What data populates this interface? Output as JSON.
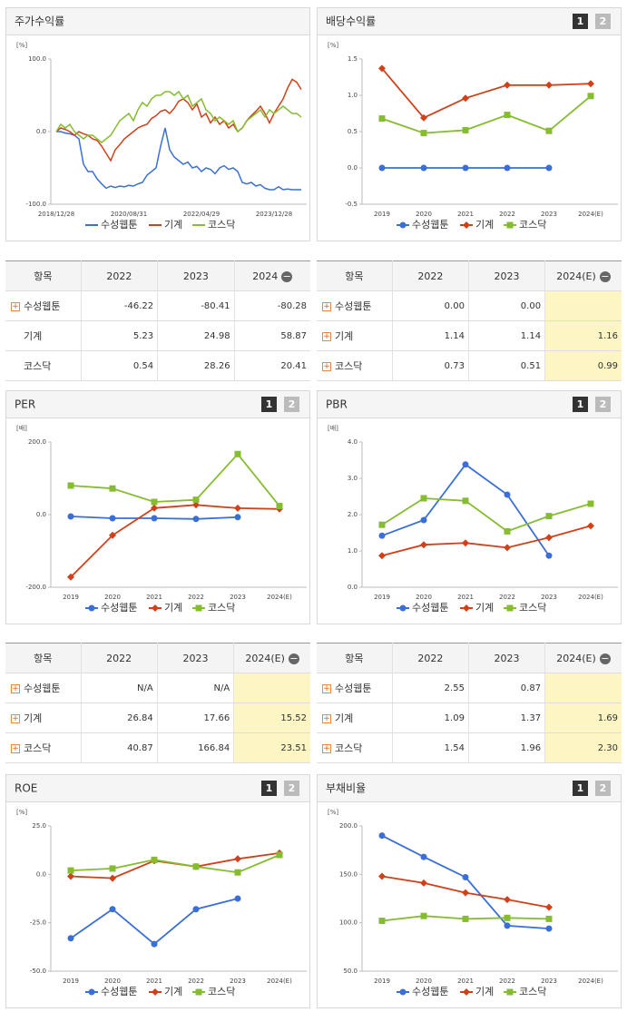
{
  "chart_data": [
    {
      "type": "line",
      "title": "주가수익률",
      "unit": "[%]",
      "markers": false,
      "categories": [
        "2018/12/28",
        null,
        null,
        null,
        null,
        null,
        null,
        null,
        null,
        null,
        null,
        null,
        null,
        null,
        null,
        null,
        "2020/08/31",
        null,
        null,
        null,
        null,
        null,
        null,
        null,
        null,
        null,
        null,
        null,
        null,
        null,
        null,
        null,
        "2022/04/29",
        null,
        null,
        null,
        null,
        null,
        null,
        null,
        null,
        null,
        null,
        null,
        null,
        null,
        null,
        null,
        "2023/12/28",
        null,
        null,
        null,
        null,
        null,
        null
      ],
      "ylim": [
        -100,
        100
      ],
      "yticks": [
        {
          "value": -100,
          "label": "-100.0"
        },
        {
          "value": 0,
          "label": "0.0"
        },
        {
          "value": 100,
          "label": "100.0"
        }
      ],
      "series": [
        {
          "name": "수성웹툰",
          "color": "#3a6fd8",
          "values": [
            0,
            0,
            -2,
            -3,
            -5,
            -10,
            -45,
            -55,
            -55,
            -65,
            -72,
            -78,
            -75,
            -77,
            -75,
            -76,
            -74,
            -75,
            -72,
            -70,
            -60,
            -55,
            -50,
            -20,
            5,
            -25,
            -35,
            -40,
            -45,
            -42,
            -50,
            -48,
            -55,
            -50,
            -52,
            -58,
            -50,
            -47,
            -52,
            -50,
            -55,
            -70,
            -72,
            -70,
            -75,
            -73,
            -78,
            -80,
            -80,
            -76,
            -80,
            -79,
            -80,
            -80,
            -80
          ]
        },
        {
          "name": "기계",
          "color": "#d2401a",
          "values": [
            0,
            5,
            3,
            0,
            -5,
            0,
            -3,
            -5,
            -10,
            -12,
            -20,
            -30,
            -40,
            -25,
            -18,
            -10,
            -5,
            0,
            5,
            8,
            10,
            18,
            22,
            28,
            30,
            25,
            32,
            42,
            45,
            40,
            30,
            38,
            20,
            25,
            12,
            20,
            10,
            15,
            5,
            10,
            0,
            5,
            15,
            22,
            28,
            35,
            25,
            12,
            25,
            35,
            45,
            60,
            72,
            68,
            58
          ]
        },
        {
          "name": "코스닥",
          "color": "#86bd30",
          "values": [
            0,
            10,
            5,
            10,
            0,
            -5,
            -10,
            -5,
            -5,
            -10,
            -15,
            -10,
            -5,
            5,
            15,
            20,
            25,
            15,
            30,
            40,
            35,
            45,
            50,
            50,
            55,
            55,
            50,
            55,
            45,
            50,
            35,
            40,
            45,
            30,
            25,
            15,
            20,
            15,
            10,
            15,
            0,
            5,
            15,
            20,
            25,
            30,
            20,
            30,
            25,
            30,
            35,
            30,
            25,
            25,
            20
          ]
        }
      ]
    },
    {
      "type": "line",
      "title": "배당수익률",
      "unit": "[%]",
      "markers": true,
      "tabs": [
        "1",
        "2"
      ],
      "categories": [
        "2019",
        "2020",
        "2021",
        "2022",
        "2023",
        "2024(E)"
      ],
      "ylim": [
        -0.5,
        1.5
      ],
      "yticks": [
        -0.5,
        {
          "value": 0,
          "label": "0.0"
        },
        0.5,
        {
          "value": 1,
          "label": "1.0"
        },
        1.5
      ],
      "series": [
        {
          "name": "수성웹툰",
          "color": "#3a6fd8",
          "values": [
            0,
            0,
            0,
            0,
            0,
            null
          ]
        },
        {
          "name": "기계",
          "color": "#d2401a",
          "values": [
            1.37,
            0.69,
            0.96,
            1.14,
            1.14,
            1.16
          ]
        },
        {
          "name": "코스닥",
          "color": "#86bd30",
          "values": [
            0.68,
            0.48,
            0.52,
            0.73,
            0.51,
            0.99
          ]
        }
      ]
    },
    {
      "type": "line",
      "title": "PER",
      "unit": "[배]",
      "markers": true,
      "tabs": [
        "1",
        "2"
      ],
      "categories": [
        "2019",
        "2020",
        "2021",
        "2022",
        "2023",
        "2024(E)"
      ],
      "ylim": [
        -200,
        200
      ],
      "yticks": [
        {
          "value": -200,
          "label": "-200.0"
        },
        {
          "value": 0,
          "label": "0.0"
        },
        {
          "value": 200,
          "label": "200.0"
        }
      ],
      "series": [
        {
          "name": "수성웹툰",
          "color": "#3a6fd8",
          "values": [
            -5,
            -10,
            -10,
            -12,
            -7,
            null
          ]
        },
        {
          "name": "기계",
          "color": "#d2401a",
          "values": [
            -172,
            -57,
            18,
            26.84,
            17.66,
            15.52
          ]
        },
        {
          "name": "코스닥",
          "color": "#86bd30",
          "values": [
            80,
            72,
            35,
            40.87,
            166.84,
            23.51
          ]
        }
      ]
    },
    {
      "type": "line",
      "title": "PBR",
      "unit": "[배]",
      "markers": true,
      "tabs": [
        "1",
        "2"
      ],
      "categories": [
        "2019",
        "2020",
        "2021",
        "2022",
        "2023",
        "2024(E)"
      ],
      "ylim": [
        0,
        4
      ],
      "yticks": [
        {
          "value": 0,
          "label": "0.0"
        },
        {
          "value": 1,
          "label": "1.0"
        },
        {
          "value": 2,
          "label": "2.0"
        },
        {
          "value": 3,
          "label": "3.0"
        },
        {
          "value": 4,
          "label": "4.0"
        }
      ],
      "series": [
        {
          "name": "수성웹툰",
          "color": "#3a6fd8",
          "values": [
            1.42,
            1.85,
            3.38,
            2.55,
            0.87,
            null
          ]
        },
        {
          "name": "기계",
          "color": "#d2401a",
          "values": [
            0.87,
            1.17,
            1.22,
            1.09,
            1.37,
            1.69
          ]
        },
        {
          "name": "코스닥",
          "color": "#86bd30",
          "values": [
            1.72,
            2.45,
            2.38,
            1.54,
            1.96,
            2.3
          ]
        }
      ]
    },
    {
      "type": "line",
      "title": "ROE",
      "unit": "[%]",
      "markers": true,
      "tabs": [
        "1",
        "2"
      ],
      "categories": [
        "2019",
        "2020",
        "2021",
        "2022",
        "2023",
        "2024(E)"
      ],
      "ylim": [
        -50,
        25
      ],
      "yticks": [
        {
          "value": -50,
          "label": "-50.0"
        },
        {
          "value": -25,
          "label": "-25.0"
        },
        {
          "value": 0,
          "label": "0.0"
        },
        {
          "value": 25,
          "label": "25.0"
        }
      ],
      "series": [
        {
          "name": "수성웹툰",
          "color": "#3a6fd8",
          "values": [
            -33,
            -18,
            -36,
            -18,
            -12.5,
            null
          ]
        },
        {
          "name": "기계",
          "color": "#d2401a",
          "values": [
            -1,
            -2,
            7,
            4,
            8,
            11
          ]
        },
        {
          "name": "코스닥",
          "color": "#86bd30",
          "values": [
            2,
            3,
            7.5,
            4,
            1,
            10
          ]
        }
      ]
    },
    {
      "type": "line",
      "title": "부채비율",
      "unit": "[%]",
      "markers": true,
      "tabs": [
        "1",
        "2"
      ],
      "categories": [
        "2019",
        "2020",
        "2021",
        "2022",
        "2023",
        "2024(E)"
      ],
      "ylim": [
        50,
        200
      ],
      "yticks": [
        {
          "value": 50,
          "label": "50.0"
        },
        {
          "value": 100,
          "label": "100.0"
        },
        {
          "value": 150,
          "label": "150.0"
        },
        {
          "value": 200,
          "label": "200.0"
        }
      ],
      "series": [
        {
          "name": "수성웹툰",
          "color": "#3a6fd8",
          "values": [
            190,
            168,
            147,
            97,
            94,
            null
          ]
        },
        {
          "name": "기계",
          "color": "#d2401a",
          "values": [
            148,
            141,
            131,
            124,
            116,
            null
          ]
        },
        {
          "name": "코스닥",
          "color": "#86bd30",
          "values": [
            102,
            107,
            104,
            105,
            104,
            null
          ]
        }
      ]
    }
  ],
  "tables": [
    {
      "header": [
        "항목",
        "2022",
        "2023",
        "2024"
      ],
      "expandable": [
        true,
        false,
        false
      ],
      "highlight_last": false,
      "rows": [
        [
          "수성웹툰",
          "-46.22",
          "-80.41",
          "-80.28"
        ],
        [
          "기계",
          "5.23",
          "24.98",
          "58.87"
        ],
        [
          "코스닥",
          "0.54",
          "28.26",
          "20.41"
        ]
      ]
    },
    {
      "header": [
        "항목",
        "2022",
        "2023",
        "2024(E)"
      ],
      "expandable": [
        true,
        true,
        true
      ],
      "highlight_last": true,
      "rows": [
        [
          "수성웹툰",
          "0.00",
          "0.00",
          null
        ],
        [
          "기계",
          "1.14",
          "1.14",
          "1.16"
        ],
        [
          "코스닥",
          "0.73",
          "0.51",
          "0.99"
        ]
      ]
    },
    {
      "header": [
        "항목",
        "2022",
        "2023",
        "2024(E)"
      ],
      "expandable": [
        true,
        true,
        true
      ],
      "highlight_last": true,
      "rows": [
        [
          "수성웹툰",
          "N/A",
          "N/A",
          null
        ],
        [
          "기계",
          "26.84",
          "17.66",
          "15.52"
        ],
        [
          "코스닥",
          "40.87",
          "166.84",
          "23.51"
        ]
      ]
    },
    {
      "header": [
        "항목",
        "2022",
        "2023",
        "2024(E)"
      ],
      "expandable": [
        true,
        true,
        true
      ],
      "highlight_last": true,
      "rows": [
        [
          "수성웹툰",
          "2.55",
          "0.87",
          null
        ],
        [
          "기계",
          "1.09",
          "1.37",
          "1.69"
        ],
        [
          "코스닥",
          "1.54",
          "1.96",
          "2.30"
        ]
      ]
    }
  ]
}
